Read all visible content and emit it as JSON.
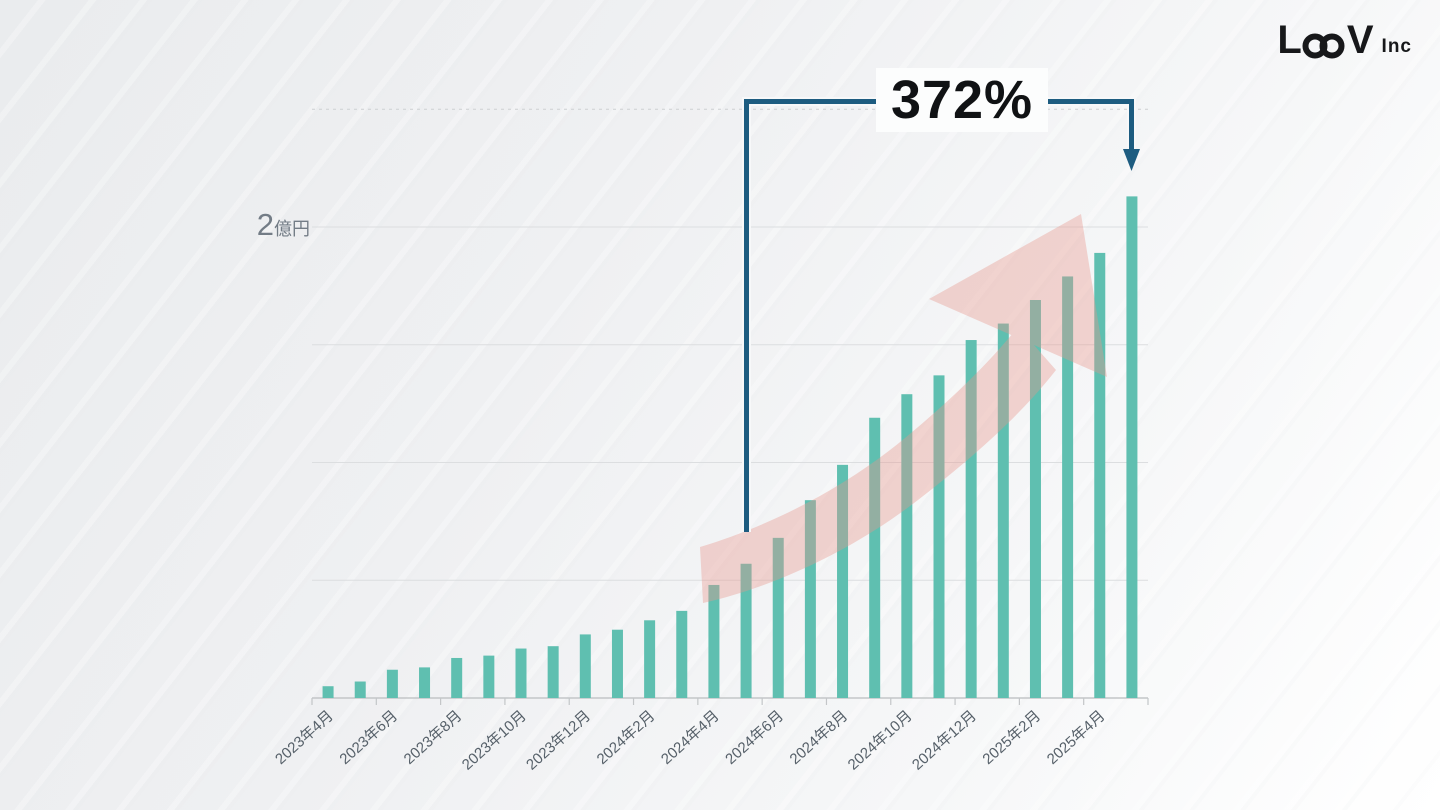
{
  "brand": {
    "name": "LOOV",
    "suffix": "Inc"
  },
  "annotation": {
    "growth_label": "372%"
  },
  "y_axis": {
    "value": "2",
    "unit": "億円"
  },
  "chart_data": {
    "type": "bar",
    "title": "",
    "unit": "億円",
    "ylim": [
      0,
      2.5
    ],
    "grid_step": 0.5,
    "labeled_gridline": "2億円",
    "legend": "none",
    "bars_per_category": 2,
    "categories_visible": [
      "2023年4月",
      "2023年6月",
      "2023年8月",
      "2023年10月",
      "2023年12月",
      "2024年2月",
      "2024年4月",
      "2024年6月",
      "2024年8月",
      "2024年10月",
      "2024年12月",
      "2025年2月",
      "2025年4月"
    ],
    "values": [
      0.05,
      0.07,
      0.12,
      0.13,
      0.17,
      0.18,
      0.21,
      0.22,
      0.27,
      0.29,
      0.33,
      0.37,
      0.48,
      0.57,
      0.68,
      0.84,
      0.99,
      1.19,
      1.29,
      1.37,
      1.52,
      1.59,
      1.69,
      1.79,
      1.89,
      2.13
    ],
    "growth_annotation": {
      "text": "372%",
      "from_bar_index": 13,
      "to_bar_index": 25
    }
  },
  "colors": {
    "bar": "#5fbfb0",
    "bracket": "#1d5c80",
    "arrow_pink": "#e7958b",
    "grid": "#dcdee0",
    "axis": "#c3c6c8",
    "tick_text": "#566069"
  }
}
